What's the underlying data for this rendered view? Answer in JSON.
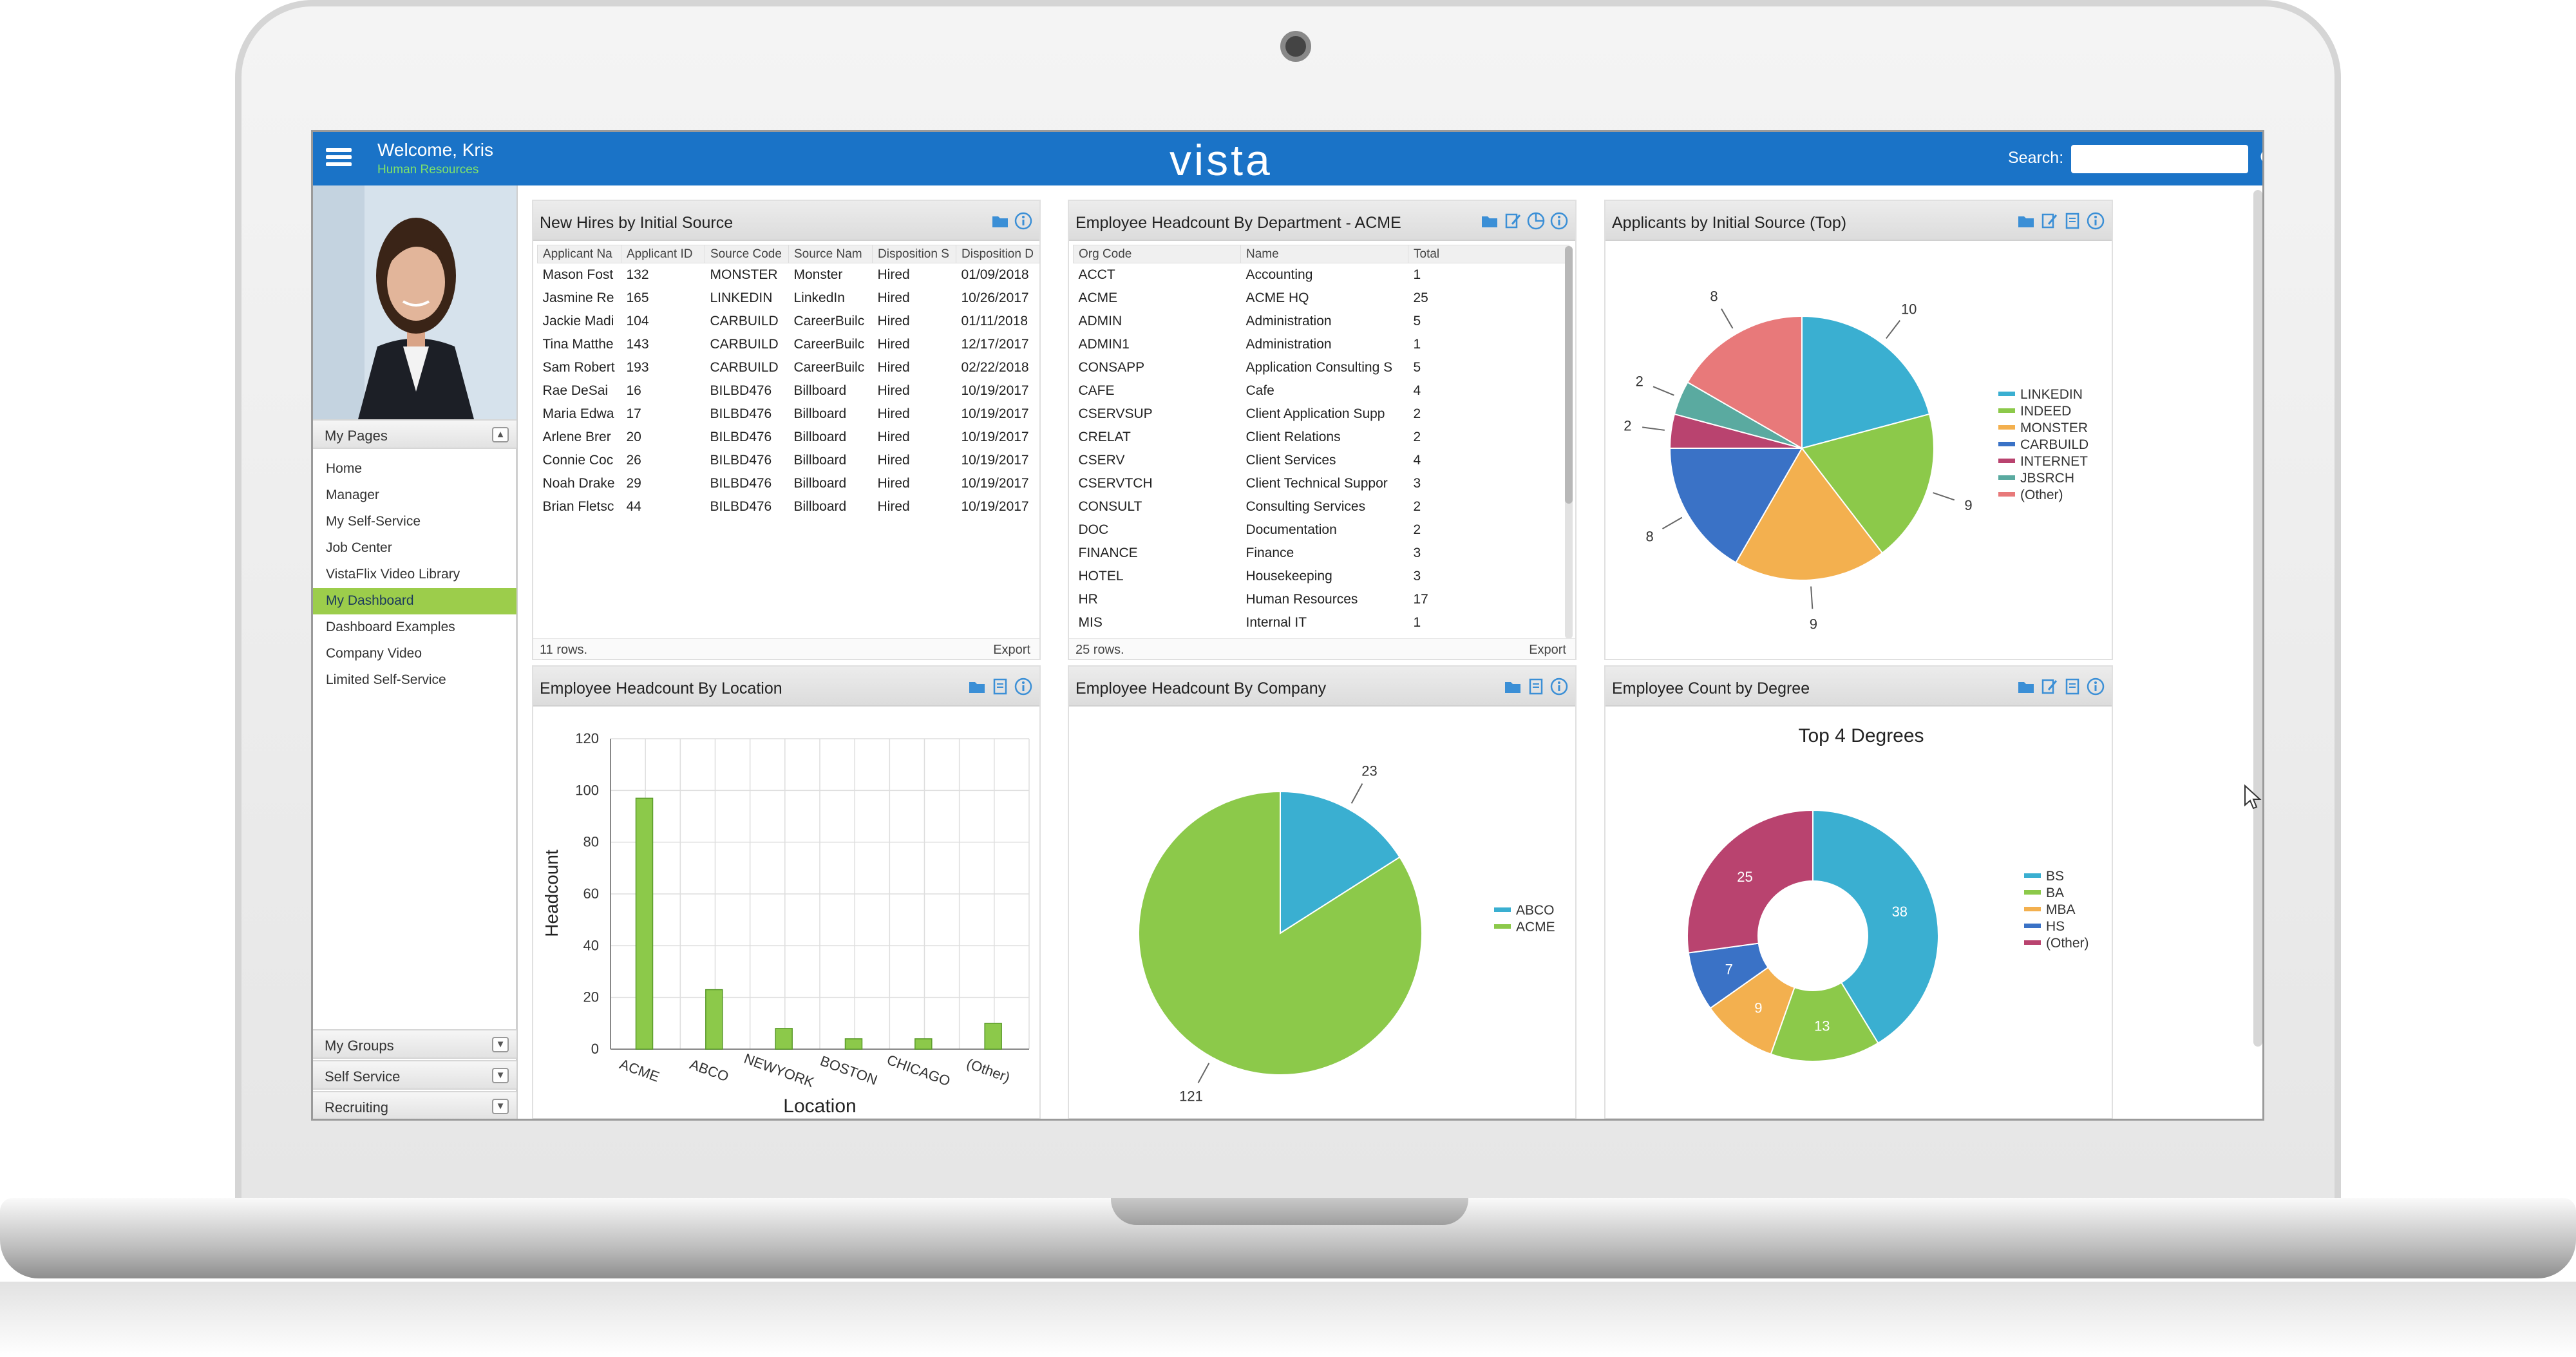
{
  "header": {
    "welcome": "Welcome, Kris",
    "department": "Human Resources",
    "logo": "vista",
    "search_label": "Search:",
    "search_value": ""
  },
  "sidebar": {
    "my_pages": "My Pages",
    "items": [
      "Home",
      "Manager",
      "My Self-Service",
      "Job Center",
      "VistaFlix Video Library",
      "My Dashboard",
      "Dashboard Examples",
      "Company Video",
      "Limited Self-Service"
    ],
    "active_item": "My Dashboard",
    "groups": [
      "My Groups",
      "Self Service",
      "Recruiting"
    ]
  },
  "colors": {
    "accent": "#1a73c7",
    "active": "#9ccd4b",
    "bar": "#8cc94a"
  },
  "new_hires": {
    "title": "New Hires by Initial Source",
    "columns": [
      "Applicant Na",
      "Applicant ID",
      "Source Code",
      "Source Nam",
      "Disposition S",
      "Disposition D"
    ],
    "rows": [
      [
        "Mason Fost",
        "132",
        "MONSTER",
        "Monster",
        "Hired",
        "01/09/2018"
      ],
      [
        "Jasmine Re",
        "165",
        "LINKEDIN",
        "LinkedIn",
        "Hired",
        "10/26/2017"
      ],
      [
        "Jackie Madi",
        "104",
        "CARBUILD",
        "CareerBuilc",
        "Hired",
        "01/11/2018"
      ],
      [
        "Tina Matthe",
        "143",
        "CARBUILD",
        "CareerBuilc",
        "Hired",
        "12/17/2017"
      ],
      [
        "Sam Robert",
        "193",
        "CARBUILD",
        "CareerBuilc",
        "Hired",
        "02/22/2018"
      ],
      [
        "Rae DeSai",
        "16",
        "BILBD476",
        "Billboard",
        "Hired",
        "10/19/2017"
      ],
      [
        "Maria Edwa",
        "17",
        "BILBD476",
        "Billboard",
        "Hired",
        "10/19/2017"
      ],
      [
        "Arlene Brer",
        "20",
        "BILBD476",
        "Billboard",
        "Hired",
        "10/19/2017"
      ],
      [
        "Connie Coc",
        "26",
        "BILBD476",
        "Billboard",
        "Hired",
        "10/19/2017"
      ],
      [
        "Noah Drake",
        "29",
        "BILBD476",
        "Billboard",
        "Hired",
        "10/19/2017"
      ],
      [
        "Brian Fletsc",
        "44",
        "BILBD476",
        "Billboard",
        "Hired",
        "10/19/2017"
      ]
    ],
    "row_count": "11 rows.",
    "export": "Export"
  },
  "headcount_dept": {
    "title": "Employee Headcount By Department - ACME",
    "columns": [
      "Org Code",
      "Name",
      "Total"
    ],
    "rows": [
      [
        "ACCT",
        "Accounting",
        "1"
      ],
      [
        "ACME",
        "ACME HQ",
        "25"
      ],
      [
        "ADMIN",
        "Administration",
        "5"
      ],
      [
        "ADMIN1",
        "Administration",
        "1"
      ],
      [
        "CONSAPP",
        "Application Consulting S",
        "5"
      ],
      [
        "CAFE",
        "Cafe",
        "4"
      ],
      [
        "CSERVSUP",
        "Client Application Supp",
        "2"
      ],
      [
        "CRELAT",
        "Client Relations",
        "2"
      ],
      [
        "CSERV",
        "Client Services",
        "4"
      ],
      [
        "CSERVTCH",
        "Client Technical Suppor",
        "3"
      ],
      [
        "CONSULT",
        "Consulting Services",
        "2"
      ],
      [
        "DOC",
        "Documentation",
        "2"
      ],
      [
        "FINANCE",
        "Finance",
        "3"
      ],
      [
        "HOTEL",
        "Housekeeping",
        "3"
      ],
      [
        "HR",
        "Human Resources",
        "17"
      ],
      [
        "MIS",
        "Internal IT",
        "1"
      ]
    ],
    "row_count": "25 rows.",
    "export": "Export"
  },
  "widget_titles": {
    "applicants": "Applicants by Initial Source (Top)",
    "location": "Employee Headcount By Location",
    "company": "Employee Headcount By Company",
    "degree": "Employee Count by Degree"
  },
  "chart_data": [
    {
      "type": "pie",
      "categories": [
        "LINKEDIN",
        "INDEED",
        "MONSTER",
        "CARBUILD",
        "INTERNET",
        "JBSRCH",
        "(Other)"
      ],
      "values": [
        10,
        9,
        9,
        8,
        2,
        2,
        8
      ],
      "colors": [
        "#3aafd1",
        "#8cc94a",
        "#f3b04f",
        "#3a72c6",
        "#b9436f",
        "#5aaaa0",
        "#e8797a"
      ],
      "legend": "right"
    },
    {
      "type": "bar",
      "categories": [
        "ACME",
        "ABCO",
        "NEWYORK",
        "BOSTON",
        "CHICAGO",
        "(Other)"
      ],
      "values": [
        97,
        23,
        8,
        4,
        4,
        10
      ],
      "xlabel": "Location",
      "ylabel": "Headcount",
      "ylim": [
        0,
        120
      ],
      "yticks": [
        0,
        20,
        40,
        60,
        80,
        100,
        120
      ],
      "grid": true
    },
    {
      "type": "pie",
      "categories": [
        "ABCO",
        "ACME"
      ],
      "values": [
        23,
        121
      ],
      "colors": [
        "#3aafd1",
        "#8cc94a"
      ],
      "legend": "right"
    },
    {
      "type": "pie",
      "title": "Top 4 Degrees",
      "categories": [
        "BS",
        "BA",
        "MBA",
        "HS",
        "(Other)"
      ],
      "values": [
        38,
        13,
        9,
        7,
        25
      ],
      "colors": [
        "#3aafd1",
        "#8cc94a",
        "#f3b04f",
        "#3a72c6",
        "#b9436f"
      ],
      "donut": true,
      "legend": "right"
    }
  ]
}
